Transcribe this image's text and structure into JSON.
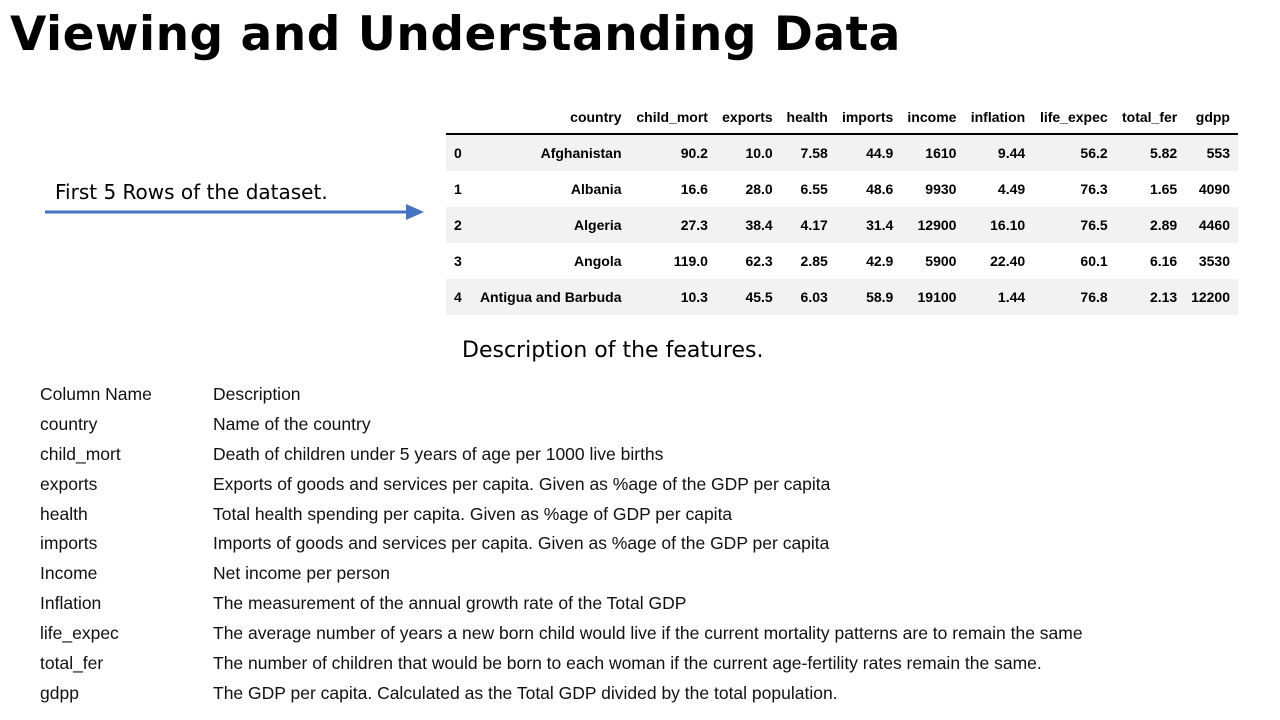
{
  "title": "Viewing and Understanding Data",
  "callout": {
    "text": "First 5 Rows of the dataset."
  },
  "table": {
    "columns": [
      "",
      "country",
      "child_mort",
      "exports",
      "health",
      "imports",
      "income",
      "inflation",
      "life_expec",
      "total_fer",
      "gdpp"
    ],
    "rows": [
      [
        "0",
        "Afghanistan",
        "90.2",
        "10.0",
        "7.58",
        "44.9",
        "1610",
        "9.44",
        "56.2",
        "5.82",
        "553"
      ],
      [
        "1",
        "Albania",
        "16.6",
        "28.0",
        "6.55",
        "48.6",
        "9930",
        "4.49",
        "76.3",
        "1.65",
        "4090"
      ],
      [
        "2",
        "Algeria",
        "27.3",
        "38.4",
        "4.17",
        "31.4",
        "12900",
        "16.10",
        "76.5",
        "2.89",
        "4460"
      ],
      [
        "3",
        "Angola",
        "119.0",
        "62.3",
        "2.85",
        "42.9",
        "5900",
        "22.40",
        "60.1",
        "6.16",
        "3530"
      ],
      [
        "4",
        "Antigua and Barbuda",
        "10.3",
        "45.5",
        "6.03",
        "58.9",
        "19100",
        "1.44",
        "76.8",
        "2.13",
        "12200"
      ]
    ]
  },
  "features_heading": "Description of the features.",
  "features": {
    "header": {
      "name": "Column Name",
      "desc": "Description"
    },
    "items": [
      {
        "name": "country",
        "desc": "Name of the country"
      },
      {
        "name": "child_mort",
        "desc": "Death of children under 5 years of age per 1000 live births"
      },
      {
        "name": "exports",
        "desc": "Exports of goods and services per capita. Given as %age of the GDP per capita"
      },
      {
        "name": "health",
        "desc": "Total health spending per capita. Given as %age of GDP per capita"
      },
      {
        "name": "imports",
        "desc": "Imports of goods and services per capita. Given as %age of the GDP per capita"
      },
      {
        "name": "Income",
        "desc": "Net income per person"
      },
      {
        "name": "Inflation",
        "desc": "The measurement of the annual growth rate of the Total GDP"
      },
      {
        "name": "life_expec",
        "desc": "The average number of years a new born child would live if the current mortality patterns are to remain the same"
      },
      {
        "name": "total_fer",
        "desc": "The number of children that would be born to each woman if the current age-fertility rates remain the same."
      },
      {
        "name": "gdpp",
        "desc": "The GDP per capita. Calculated as the Total GDP divided by the total population."
      }
    ]
  },
  "colors": {
    "arrow": "#4472c4",
    "row_stripe": "#f2f2f2"
  }
}
